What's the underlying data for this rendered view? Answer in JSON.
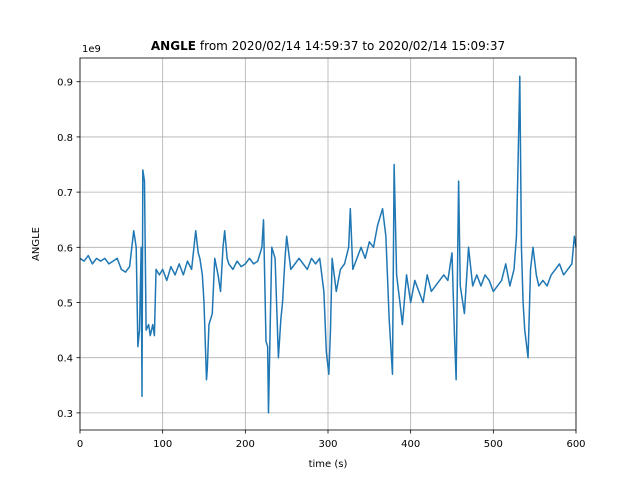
{
  "chart_data": {
    "type": "line",
    "title_bold": "ANGLE",
    "title_rest": "from 2020/02/14 14:59:37 to 2020/02/14 15:09:37",
    "y_offset_label": "1e9",
    "xlabel": "time (s)",
    "ylabel": "ANGLE",
    "color": "#1f77b4",
    "grid": true,
    "xlim": [
      0,
      600
    ],
    "ylim": [
      0.269,
      0.943
    ],
    "xticks": [
      0,
      100,
      200,
      300,
      400,
      500,
      600
    ],
    "yticks": [
      0.3,
      0.4,
      0.5,
      0.6,
      0.7,
      0.8,
      0.9
    ],
    "x": [
      0,
      5,
      10,
      15,
      20,
      25,
      30,
      35,
      40,
      45,
      50,
      55,
      60,
      65,
      68,
      70,
      72,
      74,
      75,
      76,
      78,
      80,
      83,
      85,
      88,
      90,
      92,
      96,
      100,
      105,
      110,
      115,
      120,
      125,
      130,
      135,
      140,
      143,
      145,
      148,
      150,
      153,
      154,
      156,
      160,
      163,
      167,
      170,
      173,
      175,
      178,
      180,
      185,
      190,
      195,
      200,
      205,
      210,
      215,
      220,
      222,
      225,
      227,
      228,
      230,
      232,
      236,
      240,
      243,
      245,
      248,
      250,
      255,
      260,
      265,
      270,
      275,
      280,
      285,
      290,
      295,
      298,
      301,
      303,
      305,
      310,
      315,
      320,
      325,
      327,
      330,
      335,
      340,
      345,
      350,
      355,
      360,
      366,
      370,
      374,
      378,
      380,
      383,
      387,
      390,
      395,
      400,
      405,
      410,
      415,
      420,
      425,
      430,
      435,
      440,
      445,
      450,
      453,
      455,
      458,
      460,
      463,
      465,
      470,
      475,
      480,
      485,
      490,
      495,
      500,
      505,
      510,
      515,
      520,
      525,
      528,
      530,
      532,
      534,
      536,
      538,
      542,
      545,
      548,
      552,
      555,
      560,
      565,
      570,
      575,
      580,
      585,
      590,
      595,
      598,
      600
    ],
    "values": [
      0.58,
      0.575,
      0.585,
      0.57,
      0.58,
      0.575,
      0.58,
      0.57,
      0.575,
      0.58,
      0.56,
      0.555,
      0.565,
      0.63,
      0.6,
      0.42,
      0.45,
      0.6,
      0.33,
      0.74,
      0.72,
      0.45,
      0.46,
      0.44,
      0.46,
      0.44,
      0.56,
      0.55,
      0.56,
      0.54,
      0.565,
      0.55,
      0.57,
      0.55,
      0.575,
      0.56,
      0.63,
      0.59,
      0.58,
      0.55,
      0.5,
      0.36,
      0.38,
      0.46,
      0.48,
      0.58,
      0.55,
      0.52,
      0.6,
      0.63,
      0.58,
      0.57,
      0.56,
      0.575,
      0.565,
      0.57,
      0.58,
      0.57,
      0.575,
      0.6,
      0.65,
      0.43,
      0.42,
      0.3,
      0.45,
      0.6,
      0.58,
      0.4,
      0.47,
      0.5,
      0.58,
      0.62,
      0.56,
      0.57,
      0.58,
      0.57,
      0.56,
      0.58,
      0.57,
      0.58,
      0.52,
      0.41,
      0.37,
      0.45,
      0.58,
      0.52,
      0.56,
      0.57,
      0.6,
      0.67,
      0.56,
      0.58,
      0.6,
      0.58,
      0.61,
      0.6,
      0.64,
      0.67,
      0.62,
      0.47,
      0.37,
      0.75,
      0.55,
      0.5,
      0.46,
      0.55,
      0.5,
      0.54,
      0.52,
      0.5,
      0.55,
      0.52,
      0.53,
      0.54,
      0.55,
      0.54,
      0.59,
      0.44,
      0.36,
      0.72,
      0.53,
      0.5,
      0.48,
      0.6,
      0.53,
      0.55,
      0.53,
      0.55,
      0.54,
      0.52,
      0.53,
      0.54,
      0.57,
      0.53,
      0.56,
      0.62,
      0.76,
      0.91,
      0.6,
      0.5,
      0.45,
      0.4,
      0.56,
      0.6,
      0.55,
      0.53,
      0.54,
      0.53,
      0.55,
      0.56,
      0.57,
      0.55,
      0.56,
      0.57,
      0.62,
      0.6
    ]
  }
}
